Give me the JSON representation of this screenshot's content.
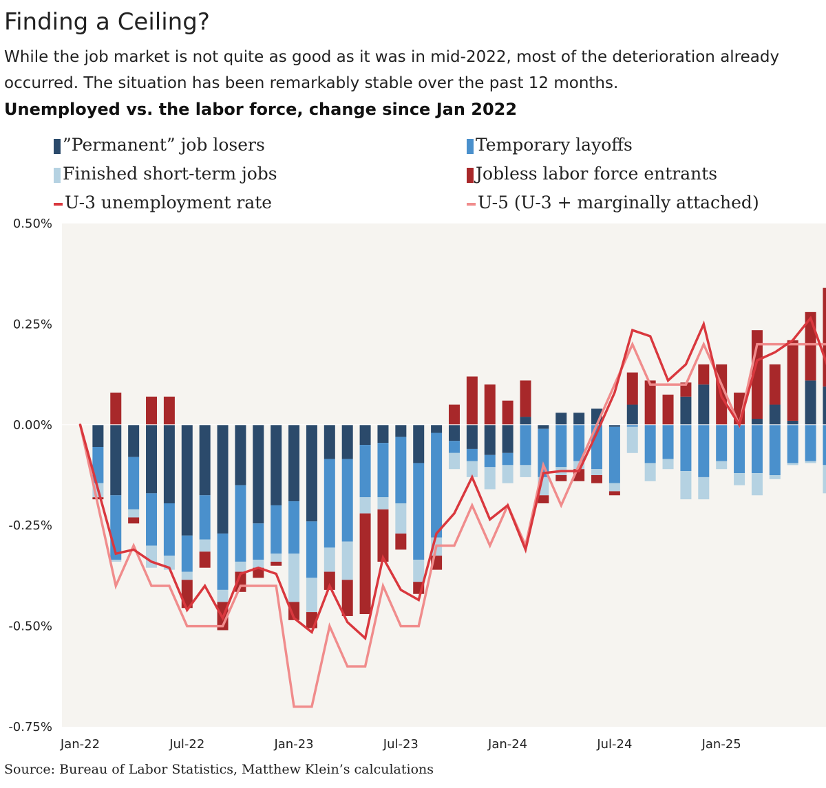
{
  "title": "Finding a Ceiling?",
  "subtitle": "While the job market is not quite as good as it was in mid-2022, most of the deterioration already occurred. The situation has been remarkably stable over the past 12 months.",
  "source": "Source: Bureau of Labor Statistics, Matthew Klein’s calculations",
  "colors": {
    "permanent": "#2b4a6b",
    "temporary": "#4a90cc",
    "short_term": "#b5d2e2",
    "entrants": "#a8282a",
    "u3": "#d9383e",
    "u5": "#f08c8c",
    "plot_bg": "#f6f4f0"
  },
  "chart_data": {
    "type": "bar",
    "title": "Unemployed vs. the labor force, change since Jan 2022",
    "xlabel": "",
    "ylabel": "",
    "ylim": [
      -0.75,
      0.5
    ],
    "yticks": [
      0.5,
      0.25,
      0.0,
      -0.25,
      -0.5,
      -0.75
    ],
    "ytick_labels": [
      "0.50%",
      "0.25%",
      "0.00%",
      "-0.25%",
      "-0.50%",
      "-0.75%"
    ],
    "xtick_labels": [
      {
        "label": "Jan-22",
        "index": 0
      },
      {
        "label": "Jul-22",
        "index": 6
      },
      {
        "label": "Jan-23",
        "index": 12
      },
      {
        "label": "Jul-23",
        "index": 18
      },
      {
        "label": "Jan-24",
        "index": 24
      },
      {
        "label": "Jul-24",
        "index": 30
      },
      {
        "label": "Jan-25",
        "index": 36
      }
    ],
    "legend": [
      {
        "key": "permanent",
        "label": "”Permanent” job losers",
        "kind": "box"
      },
      {
        "key": "temporary",
        "label": "Temporary layoffs",
        "kind": "box"
      },
      {
        "key": "short_term",
        "label": "Finished short-term jobs",
        "kind": "box"
      },
      {
        "key": "entrants",
        "label": "Jobless labor force entrants",
        "kind": "box"
      },
      {
        "key": "u3",
        "label": "U-3 unemployment rate",
        "kind": "line"
      },
      {
        "key": "u5",
        "label": "U-5 (U-3 + marginally attached)",
        "kind": "line"
      }
    ],
    "stacked_series": [
      {
        "key": "permanent",
        "name": "”Permanent” job losers",
        "values": [
          0,
          -0.055,
          -0.175,
          -0.08,
          -0.17,
          -0.195,
          -0.275,
          -0.175,
          -0.27,
          -0.15,
          -0.245,
          -0.2,
          -0.19,
          -0.24,
          -0.085,
          -0.085,
          -0.05,
          -0.045,
          -0.03,
          -0.095,
          -0.02,
          -0.04,
          -0.06,
          -0.075,
          -0.07,
          0.02,
          -0.01,
          0.03,
          0.03,
          0.04,
          -0.005,
          0.05,
          0.0,
          0.0,
          0.07,
          0.1,
          0.0,
          0.0,
          0.015,
          0.05,
          0.01,
          0.11,
          0.095
        ]
      },
      {
        "key": "temporary",
        "name": "Temporary layoffs",
        "values": [
          0,
          -0.09,
          -0.16,
          -0.13,
          -0.13,
          -0.13,
          -0.09,
          -0.11,
          -0.14,
          -0.19,
          -0.09,
          -0.12,
          -0.13,
          -0.14,
          -0.22,
          -0.205,
          -0.13,
          -0.135,
          -0.165,
          -0.24,
          -0.26,
          -0.03,
          -0.03,
          -0.03,
          -0.03,
          -0.1,
          -0.12,
          -0.105,
          -0.09,
          -0.11,
          -0.14,
          -0.005,
          -0.095,
          -0.085,
          -0.115,
          -0.13,
          -0.09,
          -0.12,
          -0.12,
          -0.125,
          -0.095,
          -0.09,
          -0.1
        ]
      },
      {
        "key": "short_term",
        "name": "Finished short-term jobs",
        "values": [
          0,
          -0.035,
          -0.005,
          -0.02,
          -0.055,
          -0.035,
          -0.02,
          -0.03,
          -0.03,
          -0.025,
          -0.02,
          -0.02,
          -0.12,
          -0.085,
          -0.06,
          -0.095,
          -0.04,
          -0.03,
          -0.075,
          -0.055,
          -0.045,
          -0.04,
          -0.04,
          -0.055,
          -0.045,
          -0.03,
          -0.045,
          -0.02,
          -0.02,
          -0.015,
          -0.02,
          -0.065,
          -0.045,
          -0.025,
          -0.07,
          -0.055,
          -0.02,
          -0.03,
          -0.055,
          -0.01,
          -0.005,
          -0.005,
          -0.07
        ]
      },
      {
        "key": "entrants",
        "name": "Jobless labor force entrants",
        "values": [
          0,
          -0.005,
          0.08,
          -0.015,
          0.07,
          0.07,
          -0.07,
          -0.04,
          -0.07,
          -0.05,
          -0.025,
          -0.01,
          -0.045,
          -0.04,
          -0.045,
          -0.09,
          -0.25,
          -0.13,
          -0.04,
          -0.03,
          -0.035,
          0.05,
          0.12,
          0.1,
          0.06,
          0.09,
          -0.02,
          -0.015,
          -0.03,
          -0.02,
          -0.01,
          0.08,
          0.11,
          0.075,
          0.035,
          0.05,
          0.15,
          0.08,
          0.22,
          0.1,
          0.2,
          0.17,
          0.245
        ]
      }
    ],
    "line_series": [
      {
        "key": "u3",
        "name": "U-3 unemployment rate",
        "values": [
          0,
          -0.16,
          -0.32,
          -0.31,
          -0.34,
          -0.355,
          -0.46,
          -0.4,
          -0.48,
          -0.37,
          -0.355,
          -0.37,
          -0.48,
          -0.515,
          -0.4,
          -0.49,
          -0.53,
          -0.33,
          -0.41,
          -0.435,
          -0.27,
          -0.22,
          -0.13,
          -0.235,
          -0.2,
          -0.31,
          -0.12,
          -0.115,
          -0.115,
          -0.02,
          0.08,
          0.235,
          0.22,
          0.11,
          0.15,
          0.25,
          0.07,
          0.0,
          0.16,
          0.18,
          0.21,
          0.265,
          0.14
        ]
      },
      {
        "key": "u5",
        "name": "U-5 (U-3 + marginally attached)",
        "values": [
          0,
          -0.2,
          -0.4,
          -0.3,
          -0.4,
          -0.4,
          -0.5,
          -0.5,
          -0.5,
          -0.4,
          -0.4,
          -0.4,
          -0.7,
          -0.7,
          -0.5,
          -0.6,
          -0.6,
          -0.4,
          -0.5,
          -0.5,
          -0.3,
          -0.3,
          -0.2,
          -0.3,
          -0.2,
          -0.3,
          -0.1,
          -0.2,
          -0.1,
          0.0,
          0.1,
          0.2,
          0.1,
          0.1,
          0.1,
          0.2,
          0.1,
          0.0,
          0.2,
          0.2,
          0.2,
          0.2,
          0.2
        ]
      }
    ]
  }
}
